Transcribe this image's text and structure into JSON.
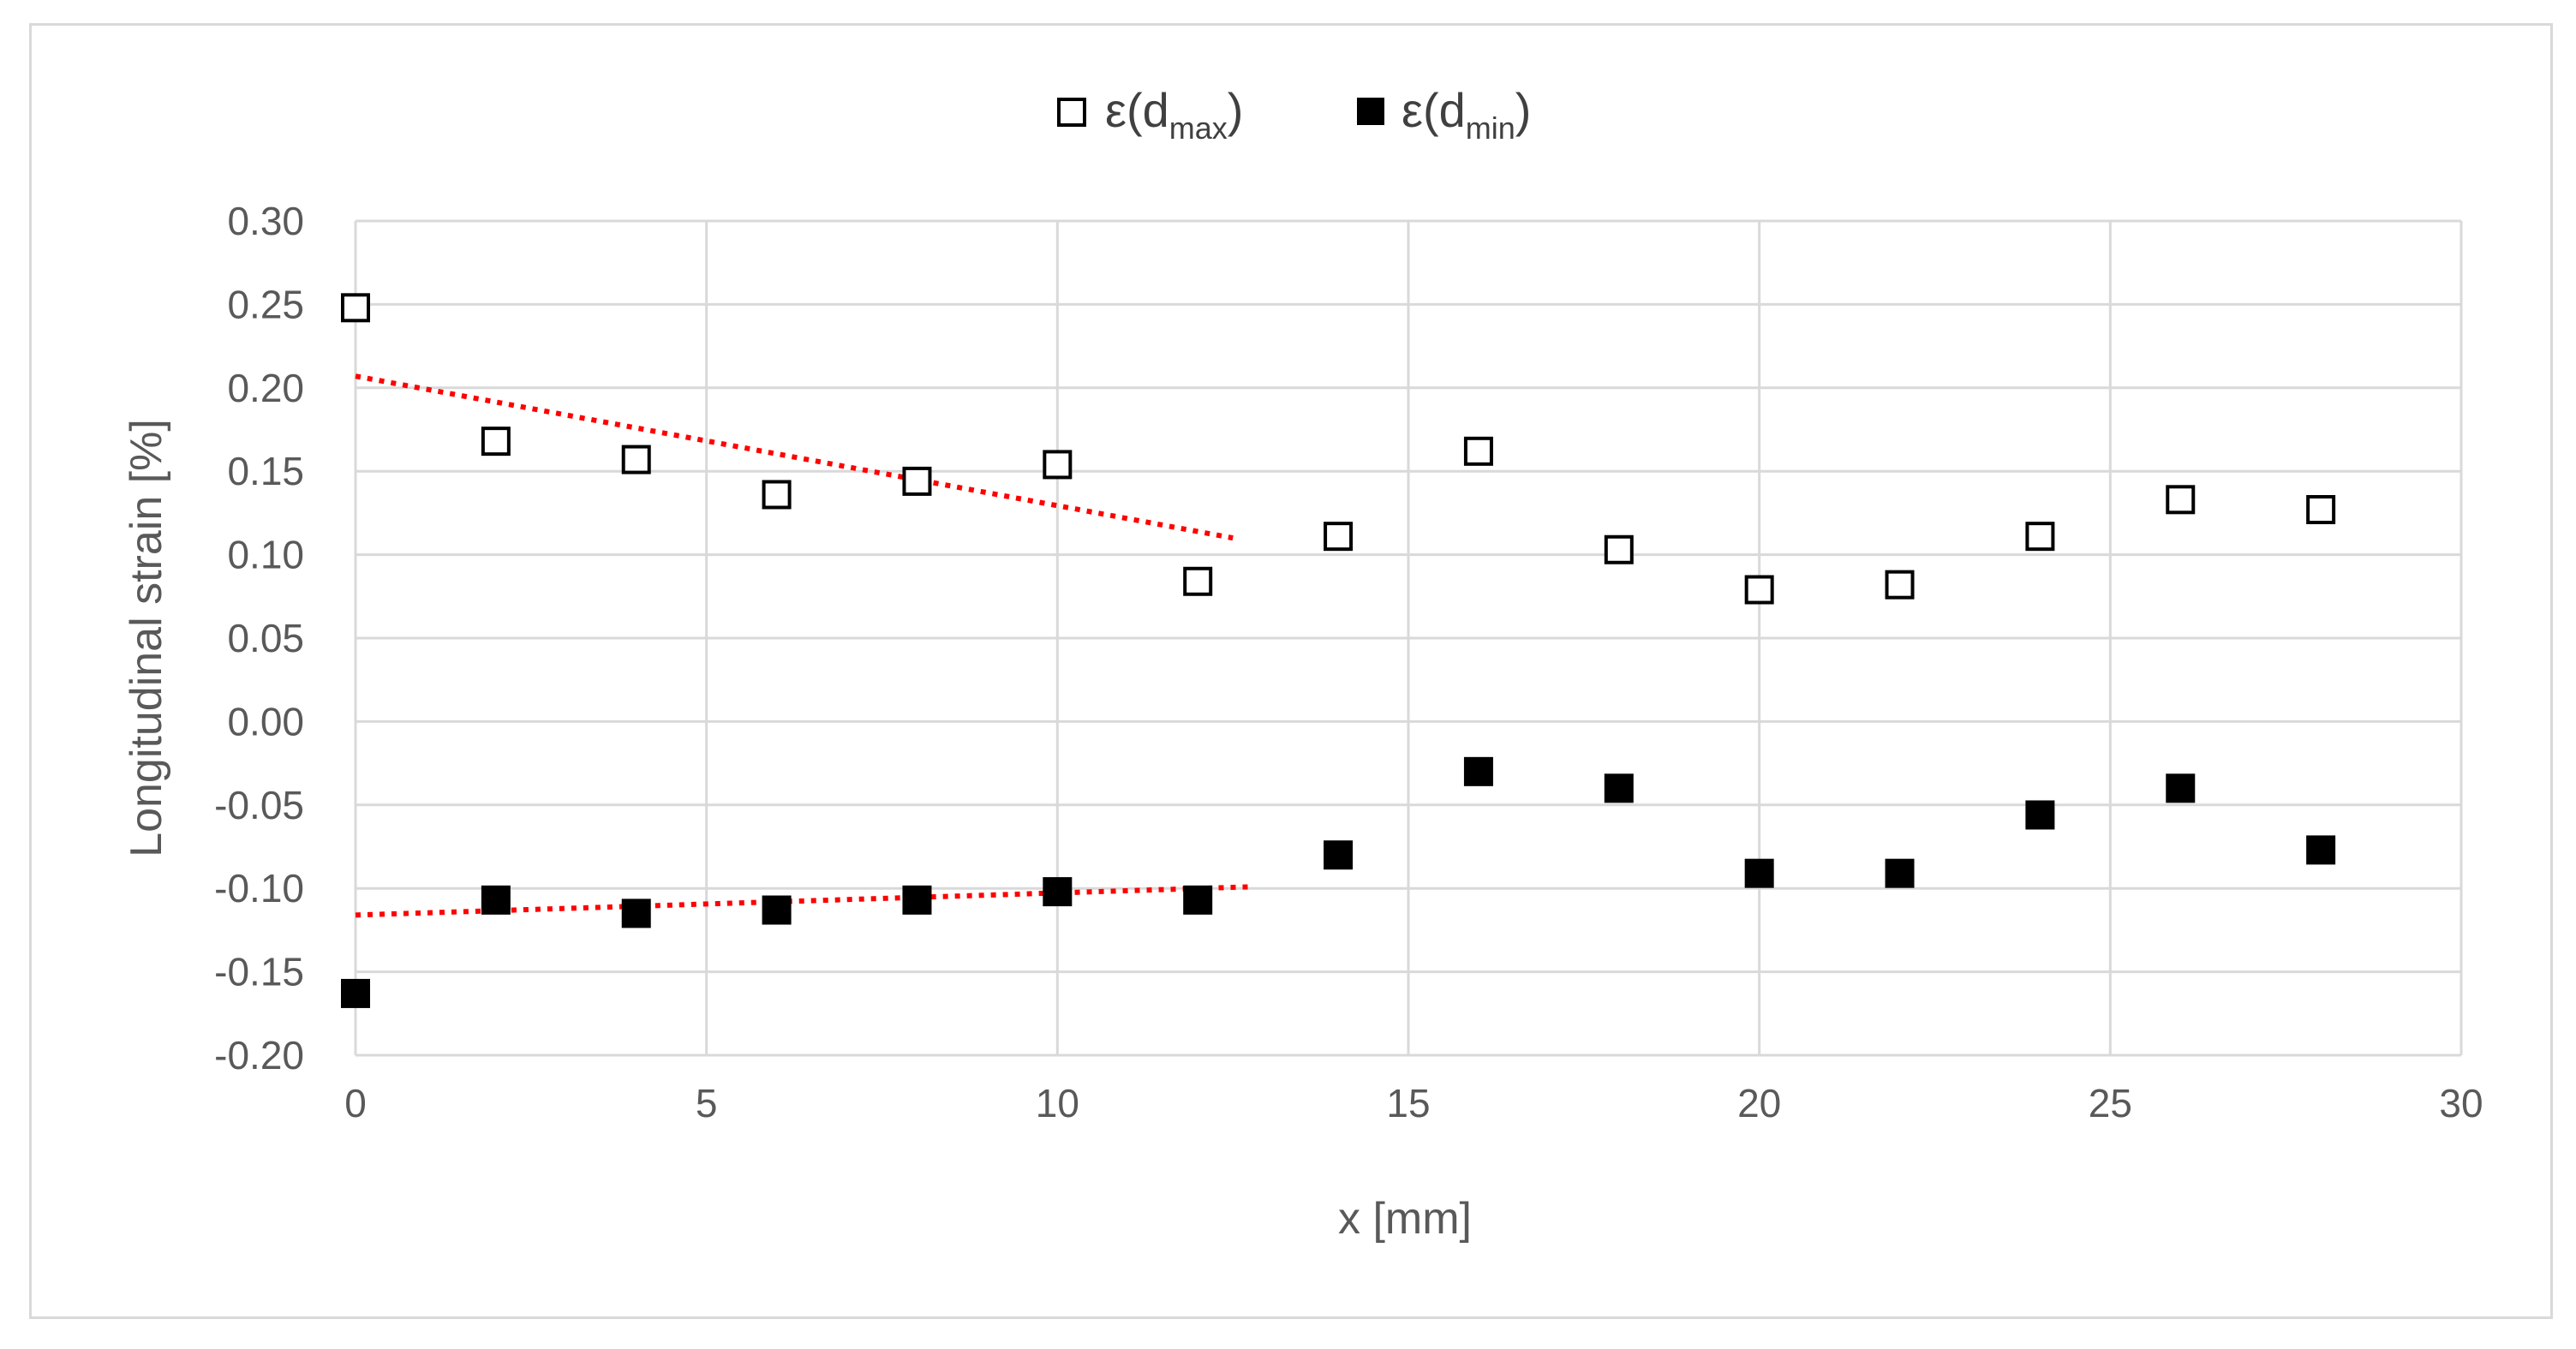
{
  "chart_data": {
    "type": "scatter",
    "xlabel": "x [mm]",
    "ylabel": "Longitudinal strain [%]",
    "xlim": [
      0,
      30
    ],
    "ylim": [
      -0.2,
      0.3
    ],
    "x_ticks": [
      "0",
      "5",
      "10",
      "15",
      "20",
      "25",
      "30"
    ],
    "y_ticks": [
      "0.30",
      "0.25",
      "0.20",
      "0.15",
      "0.10",
      "0.05",
      "0.00",
      "-0.05",
      "-0.10",
      "-0.15",
      "-0.20"
    ],
    "grid": true,
    "legend_position": "top-center",
    "legend": [
      {
        "prefix": "ε(d",
        "sub": "max",
        "suffix": ")",
        "marker": "hollow-square"
      },
      {
        "prefix": "ε(d",
        "sub": "min",
        "suffix": ")",
        "marker": "filled-square"
      }
    ],
    "series": [
      {
        "marker": "hollow-square",
        "x": [
          0,
          2,
          4,
          6,
          8,
          10,
          12,
          14,
          16,
          18,
          20,
          22,
          24,
          26,
          28
        ],
        "y": [
          0.248,
          0.168,
          0.157,
          0.136,
          0.144,
          0.154,
          0.084,
          0.111,
          0.162,
          0.103,
          0.079,
          0.082,
          0.111,
          0.133,
          0.127
        ]
      },
      {
        "marker": "filled-square",
        "x": [
          0,
          2,
          4,
          6,
          8,
          10,
          12,
          14,
          16,
          18,
          20,
          22,
          24,
          26,
          28
        ],
        "y": [
          -0.163,
          -0.107,
          -0.115,
          -0.113,
          -0.107,
          -0.102,
          -0.107,
          -0.08,
          -0.03,
          -0.04,
          -0.091,
          -0.091,
          -0.056,
          -0.04,
          -0.077
        ]
      }
    ],
    "trendlines": [
      {
        "series": 0,
        "x": [
          0,
          12.5
        ],
        "y": [
          0.207,
          0.11
        ],
        "color": "#ff0000",
        "style": "dotted"
      },
      {
        "series": 1,
        "x": [
          0,
          12.8
        ],
        "y": [
          -0.116,
          -0.099
        ],
        "color": "#ff0000",
        "style": "dotted"
      }
    ],
    "colors": {
      "grid": "#d9d9d9",
      "marker": "#000000",
      "trendline": "#ff0000",
      "text": "#595959"
    }
  }
}
